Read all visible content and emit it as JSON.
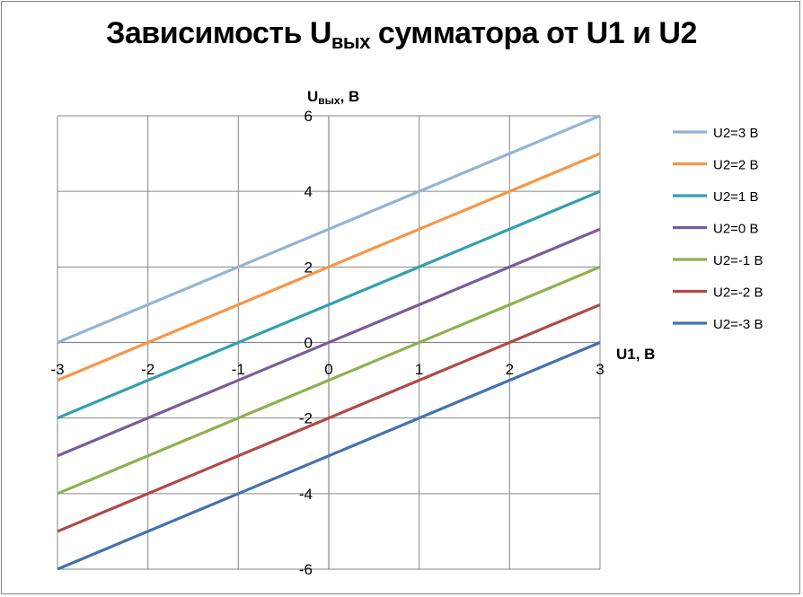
{
  "chart_data": {
    "type": "line",
    "title": "Зависимость Uвых сумматора от U1 и U2",
    "title_main": "Зависимость U",
    "title_sub": "вых",
    "title_rest": " сумматора от U1 и U2",
    "xlabel": "U1, В",
    "ylabel_main": "U",
    "ylabel_sub": "вых",
    "ylabel_rest": ", В",
    "xlim": [
      -3,
      3
    ],
    "ylim": [
      -6,
      6
    ],
    "x_ticks": [
      "-3",
      "-2",
      "-1",
      "0",
      "1",
      "2",
      "3"
    ],
    "y_ticks": [
      "-6",
      "-4",
      "-2",
      "0",
      "2",
      "4",
      "6"
    ],
    "grid": true,
    "legend_position": "right",
    "x": [
      -3,
      3
    ],
    "series": [
      {
        "name": "U2=3 В",
        "values": [
          0,
          6
        ],
        "color": "#95B3D7"
      },
      {
        "name": "U2=2 В",
        "values": [
          -1,
          5
        ],
        "color": "#F79646"
      },
      {
        "name": "U2=1 В",
        "values": [
          -2,
          4
        ],
        "color": "#31A0B1"
      },
      {
        "name": "U2=0 В",
        "values": [
          -3,
          3
        ],
        "color": "#7A5C9C"
      },
      {
        "name": "U2=-1 В",
        "values": [
          -4,
          2
        ],
        "color": "#8EB04F"
      },
      {
        "name": "U2=-2 В",
        "values": [
          -5,
          1
        ],
        "color": "#B04A47"
      },
      {
        "name": "U2=-3 В",
        "values": [
          -6,
          0
        ],
        "color": "#4472B0"
      }
    ]
  }
}
